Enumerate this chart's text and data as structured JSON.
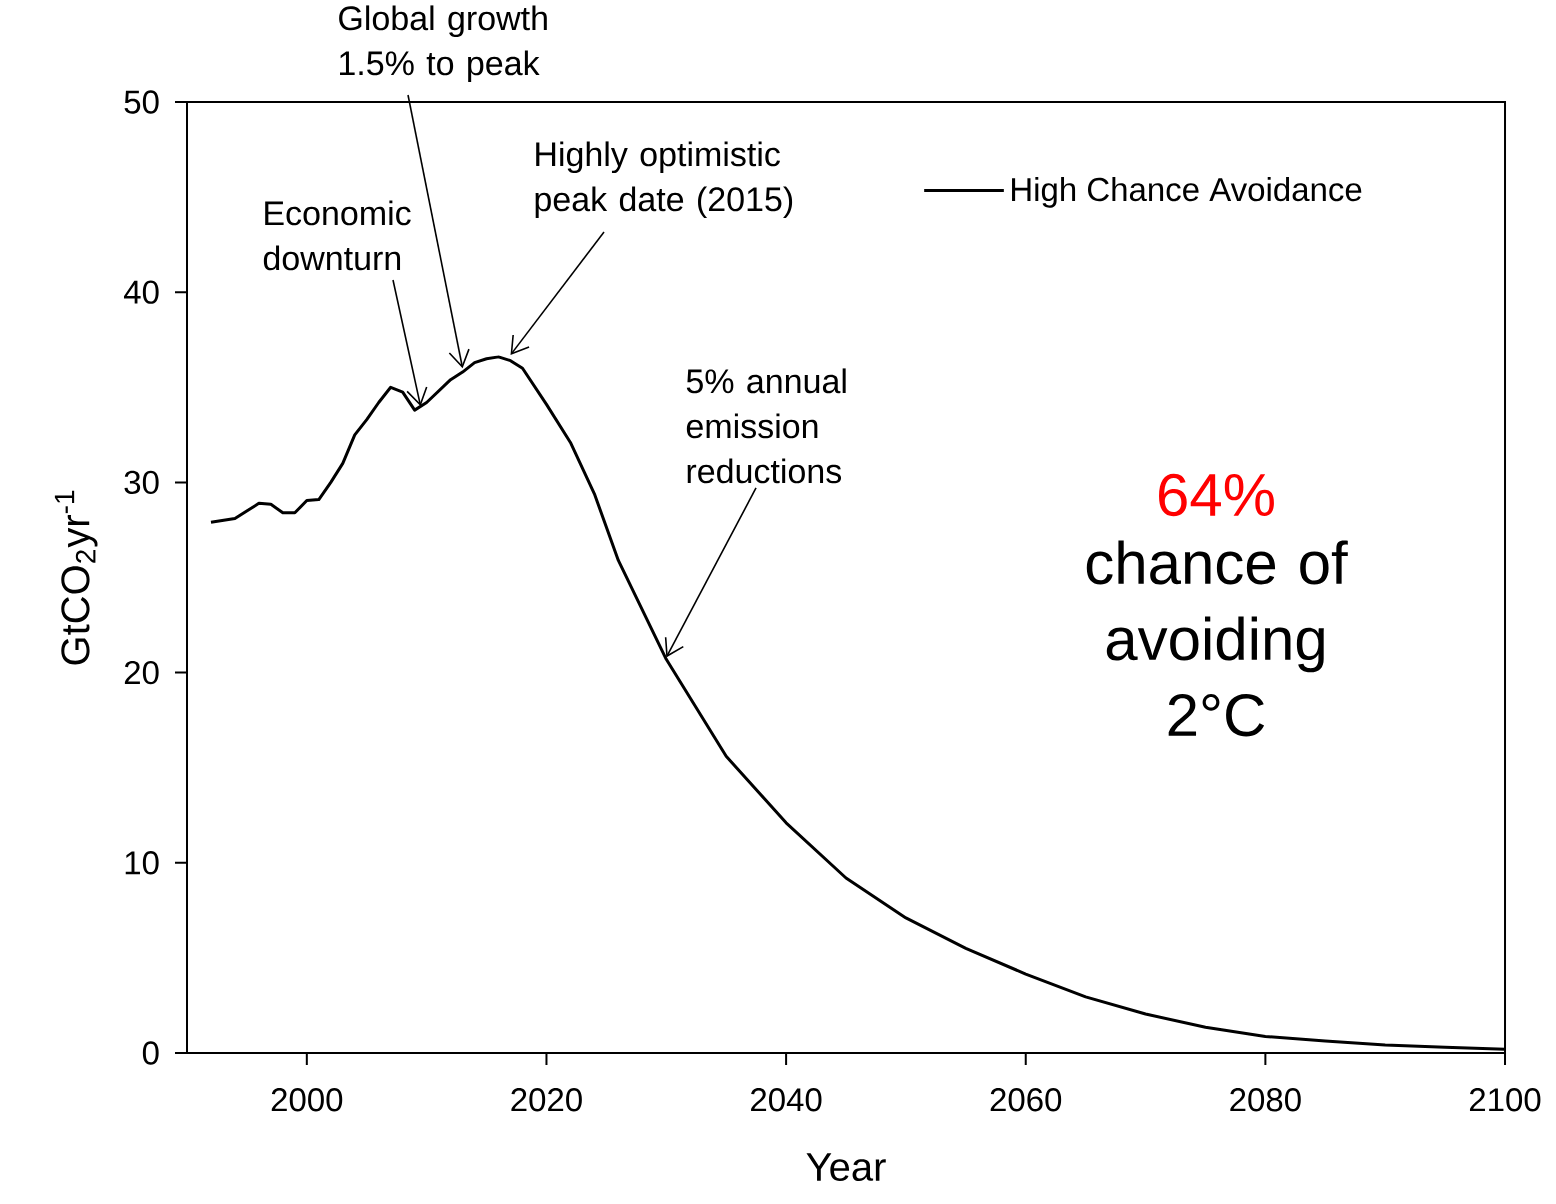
{
  "chart_data": {
    "type": "line",
    "xlabel": "Year",
    "ylabel": "GtCO$_{2}$yr$^{-1}$",
    "xlim": [
      1990,
      2100
    ],
    "ylim": [
      0,
      50
    ],
    "xticks": [
      2000,
      2020,
      2040,
      2060,
      2080,
      2100
    ],
    "yticks": [
      0,
      10,
      20,
      30,
      40,
      50
    ],
    "grid": false,
    "legend": "top right",
    "marker": "none",
    "line_style": "solid",
    "series": [
      {
        "name": "High Chance Avoidance",
        "color": "#000000",
        "x": [
          1992,
          1994,
          1996,
          1997,
          1998,
          1999,
          2000,
          2001,
          2002,
          2003,
          2004,
          2005,
          2006,
          2007,
          2008,
          2009,
          2010,
          2011,
          2012,
          2013,
          2014,
          2015,
          2016,
          2017,
          2018,
          2020,
          2022,
          2024,
          2026,
          2028,
          2030,
          2035,
          2040,
          2045,
          2050,
          2055,
          2060,
          2065,
          2070,
          2075,
          2080,
          2085,
          2090,
          2095,
          2100
        ],
        "values": [
          27.9,
          28.1,
          28.9,
          28.85,
          28.4,
          28.4,
          29.05,
          29.1,
          30.0,
          31.0,
          32.5,
          33.3,
          34.2,
          35.0,
          34.75,
          33.8,
          34.2,
          34.8,
          35.4,
          35.8,
          36.3,
          36.5,
          36.6,
          36.4,
          36.0,
          34.1,
          32.1,
          29.4,
          25.9,
          23.3,
          20.7,
          15.6,
          12.1,
          9.2,
          7.1,
          5.5,
          4.15,
          2.95,
          2.05,
          1.35,
          0.87,
          0.63,
          0.42,
          0.3,
          0.2
        ]
      }
    ],
    "annotations": [
      {
        "text": "Global growth 1.5% to peak",
        "x": 2013,
        "y": 36.0
      },
      {
        "text": "Economic downturn",
        "x": 2009.5,
        "y": 34.0
      },
      {
        "text": "Highly optimistic peak date (2015)",
        "x": 2017,
        "y": 36.7
      },
      {
        "text": "5% annual emission reductions",
        "x": 2030,
        "y": 20.8
      },
      "64%",
      "chance of avoiding 2°C"
    ]
  }
}
